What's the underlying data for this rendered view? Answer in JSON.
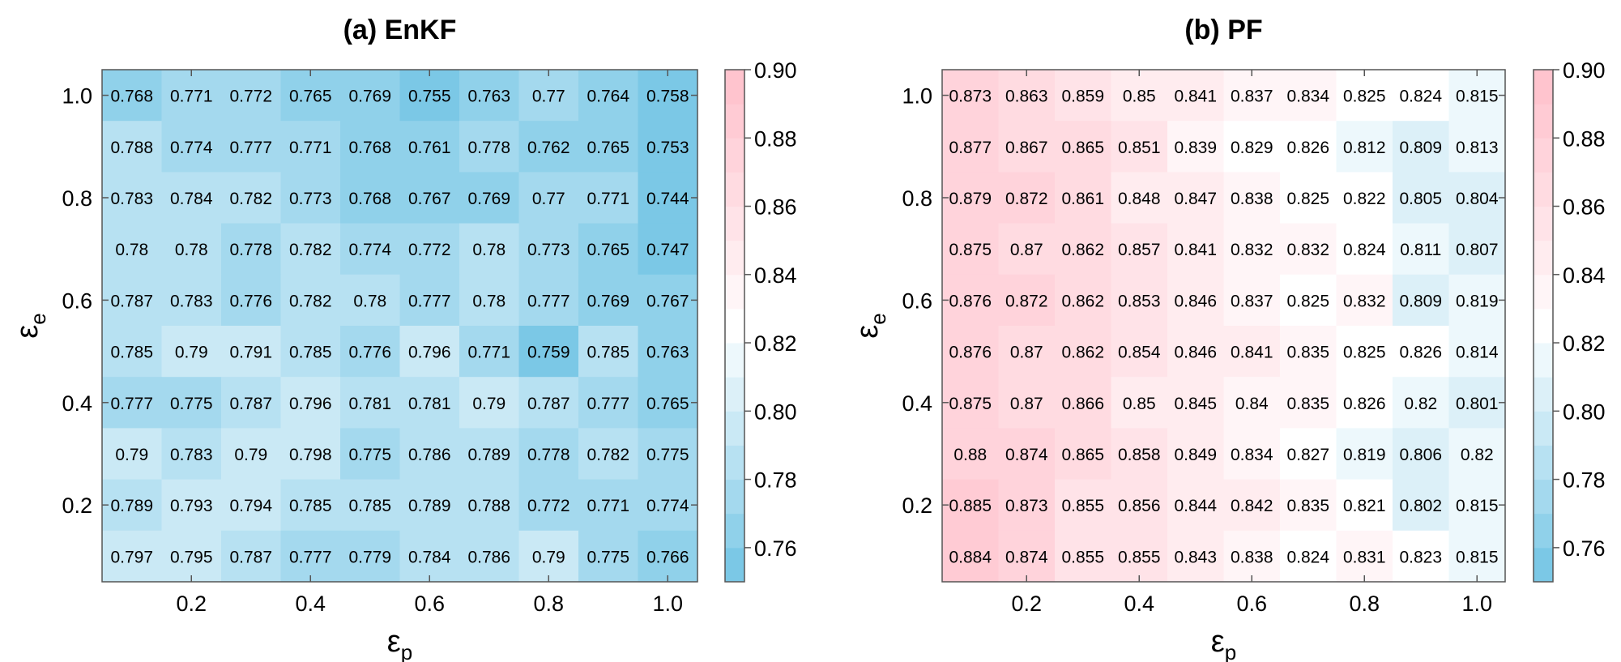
{
  "chart_data": [
    {
      "type": "heatmap",
      "title": "(a) EnKF",
      "xlabel": "ε",
      "xlabel_sub": "p",
      "ylabel": "ε",
      "ylabel_sub": "e",
      "x": [
        0.1,
        0.2,
        0.3,
        0.4,
        0.5,
        0.6,
        0.7,
        0.8,
        0.9,
        1.0
      ],
      "y": [
        1.0,
        0.9,
        0.8,
        0.7,
        0.6,
        0.5,
        0.4,
        0.3,
        0.2,
        0.1
      ],
      "x_ticks": [
        0.2,
        0.4,
        0.6,
        0.8,
        1.0
      ],
      "x_tick_labels": [
        "0.2",
        "0.4",
        "0.6",
        "0.8",
        "1.0"
      ],
      "y_ticks": [
        1.0,
        0.8,
        0.6,
        0.4,
        0.2
      ],
      "y_tick_labels": [
        "1.0",
        "0.8",
        "0.6",
        "0.4",
        "0.2"
      ],
      "values": [
        [
          0.768,
          0.771,
          0.772,
          0.765,
          0.769,
          0.755,
          0.763,
          0.77,
          0.764,
          0.758
        ],
        [
          0.788,
          0.774,
          0.777,
          0.771,
          0.768,
          0.761,
          0.778,
          0.762,
          0.765,
          0.753
        ],
        [
          0.783,
          0.784,
          0.782,
          0.773,
          0.768,
          0.767,
          0.769,
          0.77,
          0.771,
          0.744
        ],
        [
          0.78,
          0.78,
          0.778,
          0.782,
          0.774,
          0.772,
          0.78,
          0.773,
          0.765,
          0.747
        ],
        [
          0.787,
          0.783,
          0.776,
          0.782,
          0.78,
          0.777,
          0.78,
          0.777,
          0.769,
          0.767
        ],
        [
          0.785,
          0.79,
          0.791,
          0.785,
          0.776,
          0.796,
          0.771,
          0.759,
          0.785,
          0.763
        ],
        [
          0.777,
          0.775,
          0.787,
          0.796,
          0.781,
          0.781,
          0.79,
          0.787,
          0.777,
          0.765
        ],
        [
          0.79,
          0.783,
          0.79,
          0.798,
          0.775,
          0.786,
          0.789,
          0.778,
          0.782,
          0.775
        ],
        [
          0.789,
          0.793,
          0.794,
          0.785,
          0.785,
          0.789,
          0.788,
          0.772,
          0.771,
          0.774
        ],
        [
          0.797,
          0.795,
          0.787,
          0.777,
          0.779,
          0.784,
          0.786,
          0.79,
          0.775,
          0.766
        ]
      ],
      "value_labels": [
        [
          "0.768",
          "0.771",
          "0.772",
          "0.765",
          "0.769",
          "0.755",
          "0.763",
          "0.77",
          "0.764",
          "0.758"
        ],
        [
          "0.788",
          "0.774",
          "0.777",
          "0.771",
          "0.768",
          "0.761",
          "0.778",
          "0.762",
          "0.765",
          "0.753"
        ],
        [
          "0.783",
          "0.784",
          "0.782",
          "0.773",
          "0.768",
          "0.767",
          "0.769",
          "0.77",
          "0.771",
          "0.744"
        ],
        [
          "0.78",
          "0.78",
          "0.778",
          "0.782",
          "0.774",
          "0.772",
          "0.78",
          "0.773",
          "0.765",
          "0.747"
        ],
        [
          "0.787",
          "0.783",
          "0.776",
          "0.782",
          "0.78",
          "0.777",
          "0.78",
          "0.777",
          "0.769",
          "0.767"
        ],
        [
          "0.785",
          "0.79",
          "0.791",
          "0.785",
          "0.776",
          "0.796",
          "0.771",
          "0.759",
          "0.785",
          "0.763"
        ],
        [
          "0.777",
          "0.775",
          "0.787",
          "0.796",
          "0.781",
          "0.781",
          "0.79",
          "0.787",
          "0.777",
          "0.765"
        ],
        [
          "0.79",
          "0.783",
          "0.79",
          "0.798",
          "0.775",
          "0.786",
          "0.789",
          "0.778",
          "0.782",
          "0.775"
        ],
        [
          "0.789",
          "0.793",
          "0.794",
          "0.785",
          "0.785",
          "0.789",
          "0.788",
          "0.772",
          "0.771",
          "0.774"
        ],
        [
          "0.797",
          "0.795",
          "0.787",
          "0.777",
          "0.779",
          "0.784",
          "0.786",
          "0.79",
          "0.775",
          "0.766"
        ]
      ],
      "colorbar": {
        "range": [
          0.75,
          0.9
        ],
        "ticks": [
          0.76,
          0.78,
          0.8,
          0.82,
          0.84,
          0.86,
          0.88,
          0.9
        ],
        "tick_labels": [
          "0.76",
          "0.78",
          "0.80",
          "0.82",
          "0.84",
          "0.86",
          "0.88",
          "0.90"
        ],
        "low_color": "#6ec3e4",
        "mid_color": "#ffffff",
        "high_color": "#ffc0cb",
        "mid_value": 0.825,
        "levels": 15
      }
    },
    {
      "type": "heatmap",
      "title": "(b) PF",
      "xlabel": "ε",
      "xlabel_sub": "p",
      "ylabel": "ε",
      "ylabel_sub": "e",
      "x": [
        0.1,
        0.2,
        0.3,
        0.4,
        0.5,
        0.6,
        0.7,
        0.8,
        0.9,
        1.0
      ],
      "y": [
        1.0,
        0.9,
        0.8,
        0.7,
        0.6,
        0.5,
        0.4,
        0.3,
        0.2,
        0.1
      ],
      "x_ticks": [
        0.2,
        0.4,
        0.6,
        0.8,
        1.0
      ],
      "x_tick_labels": [
        "0.2",
        "0.4",
        "0.6",
        "0.8",
        "1.0"
      ],
      "y_ticks": [
        1.0,
        0.8,
        0.6,
        0.4,
        0.2
      ],
      "y_tick_labels": [
        "1.0",
        "0.8",
        "0.6",
        "0.4",
        "0.2"
      ],
      "values": [
        [
          0.873,
          0.863,
          0.859,
          0.85,
          0.841,
          0.837,
          0.834,
          0.825,
          0.824,
          0.815
        ],
        [
          0.877,
          0.867,
          0.865,
          0.851,
          0.839,
          0.829,
          0.826,
          0.812,
          0.809,
          0.813
        ],
        [
          0.879,
          0.872,
          0.861,
          0.848,
          0.847,
          0.838,
          0.825,
          0.822,
          0.805,
          0.804
        ],
        [
          0.875,
          0.87,
          0.862,
          0.857,
          0.841,
          0.832,
          0.832,
          0.824,
          0.811,
          0.807
        ],
        [
          0.876,
          0.872,
          0.862,
          0.853,
          0.846,
          0.837,
          0.825,
          0.832,
          0.809,
          0.819
        ],
        [
          0.876,
          0.87,
          0.862,
          0.854,
          0.846,
          0.841,
          0.835,
          0.825,
          0.826,
          0.814
        ],
        [
          0.875,
          0.87,
          0.866,
          0.85,
          0.845,
          0.84,
          0.835,
          0.826,
          0.82,
          0.801
        ],
        [
          0.88,
          0.874,
          0.865,
          0.858,
          0.849,
          0.834,
          0.827,
          0.819,
          0.806,
          0.82
        ],
        [
          0.885,
          0.873,
          0.855,
          0.856,
          0.844,
          0.842,
          0.835,
          0.821,
          0.802,
          0.815
        ],
        [
          0.884,
          0.874,
          0.855,
          0.855,
          0.843,
          0.838,
          0.824,
          0.831,
          0.823,
          0.815
        ]
      ],
      "value_labels": [
        [
          "0.873",
          "0.863",
          "0.859",
          "0.85",
          "0.841",
          "0.837",
          "0.834",
          "0.825",
          "0.824",
          "0.815"
        ],
        [
          "0.877",
          "0.867",
          "0.865",
          "0.851",
          "0.839",
          "0.829",
          "0.826",
          "0.812",
          "0.809",
          "0.813"
        ],
        [
          "0.879",
          "0.872",
          "0.861",
          "0.848",
          "0.847",
          "0.838",
          "0.825",
          "0.822",
          "0.805",
          "0.804"
        ],
        [
          "0.875",
          "0.87",
          "0.862",
          "0.857",
          "0.841",
          "0.832",
          "0.832",
          "0.824",
          "0.811",
          "0.807"
        ],
        [
          "0.876",
          "0.872",
          "0.862",
          "0.853",
          "0.846",
          "0.837",
          "0.825",
          "0.832",
          "0.809",
          "0.819"
        ],
        [
          "0.876",
          "0.87",
          "0.862",
          "0.854",
          "0.846",
          "0.841",
          "0.835",
          "0.825",
          "0.826",
          "0.814"
        ],
        [
          "0.875",
          "0.87",
          "0.866",
          "0.85",
          "0.845",
          "0.84",
          "0.835",
          "0.826",
          "0.82",
          "0.801"
        ],
        [
          "0.88",
          "0.874",
          "0.865",
          "0.858",
          "0.849",
          "0.834",
          "0.827",
          "0.819",
          "0.806",
          "0.82"
        ],
        [
          "0.885",
          "0.873",
          "0.855",
          "0.856",
          "0.844",
          "0.842",
          "0.835",
          "0.821",
          "0.802",
          "0.815"
        ],
        [
          "0.884",
          "0.874",
          "0.855",
          "0.855",
          "0.843",
          "0.838",
          "0.824",
          "0.831",
          "0.823",
          "0.815"
        ]
      ],
      "colorbar": {
        "range": [
          0.75,
          0.9
        ],
        "ticks": [
          0.76,
          0.78,
          0.8,
          0.82,
          0.84,
          0.86,
          0.88,
          0.9
        ],
        "tick_labels": [
          "0.76",
          "0.78",
          "0.80",
          "0.82",
          "0.84",
          "0.86",
          "0.88",
          "0.90"
        ],
        "low_color": "#6ec3e4",
        "mid_color": "#ffffff",
        "high_color": "#ffc0cb",
        "mid_value": 0.825,
        "levels": 15
      }
    }
  ]
}
